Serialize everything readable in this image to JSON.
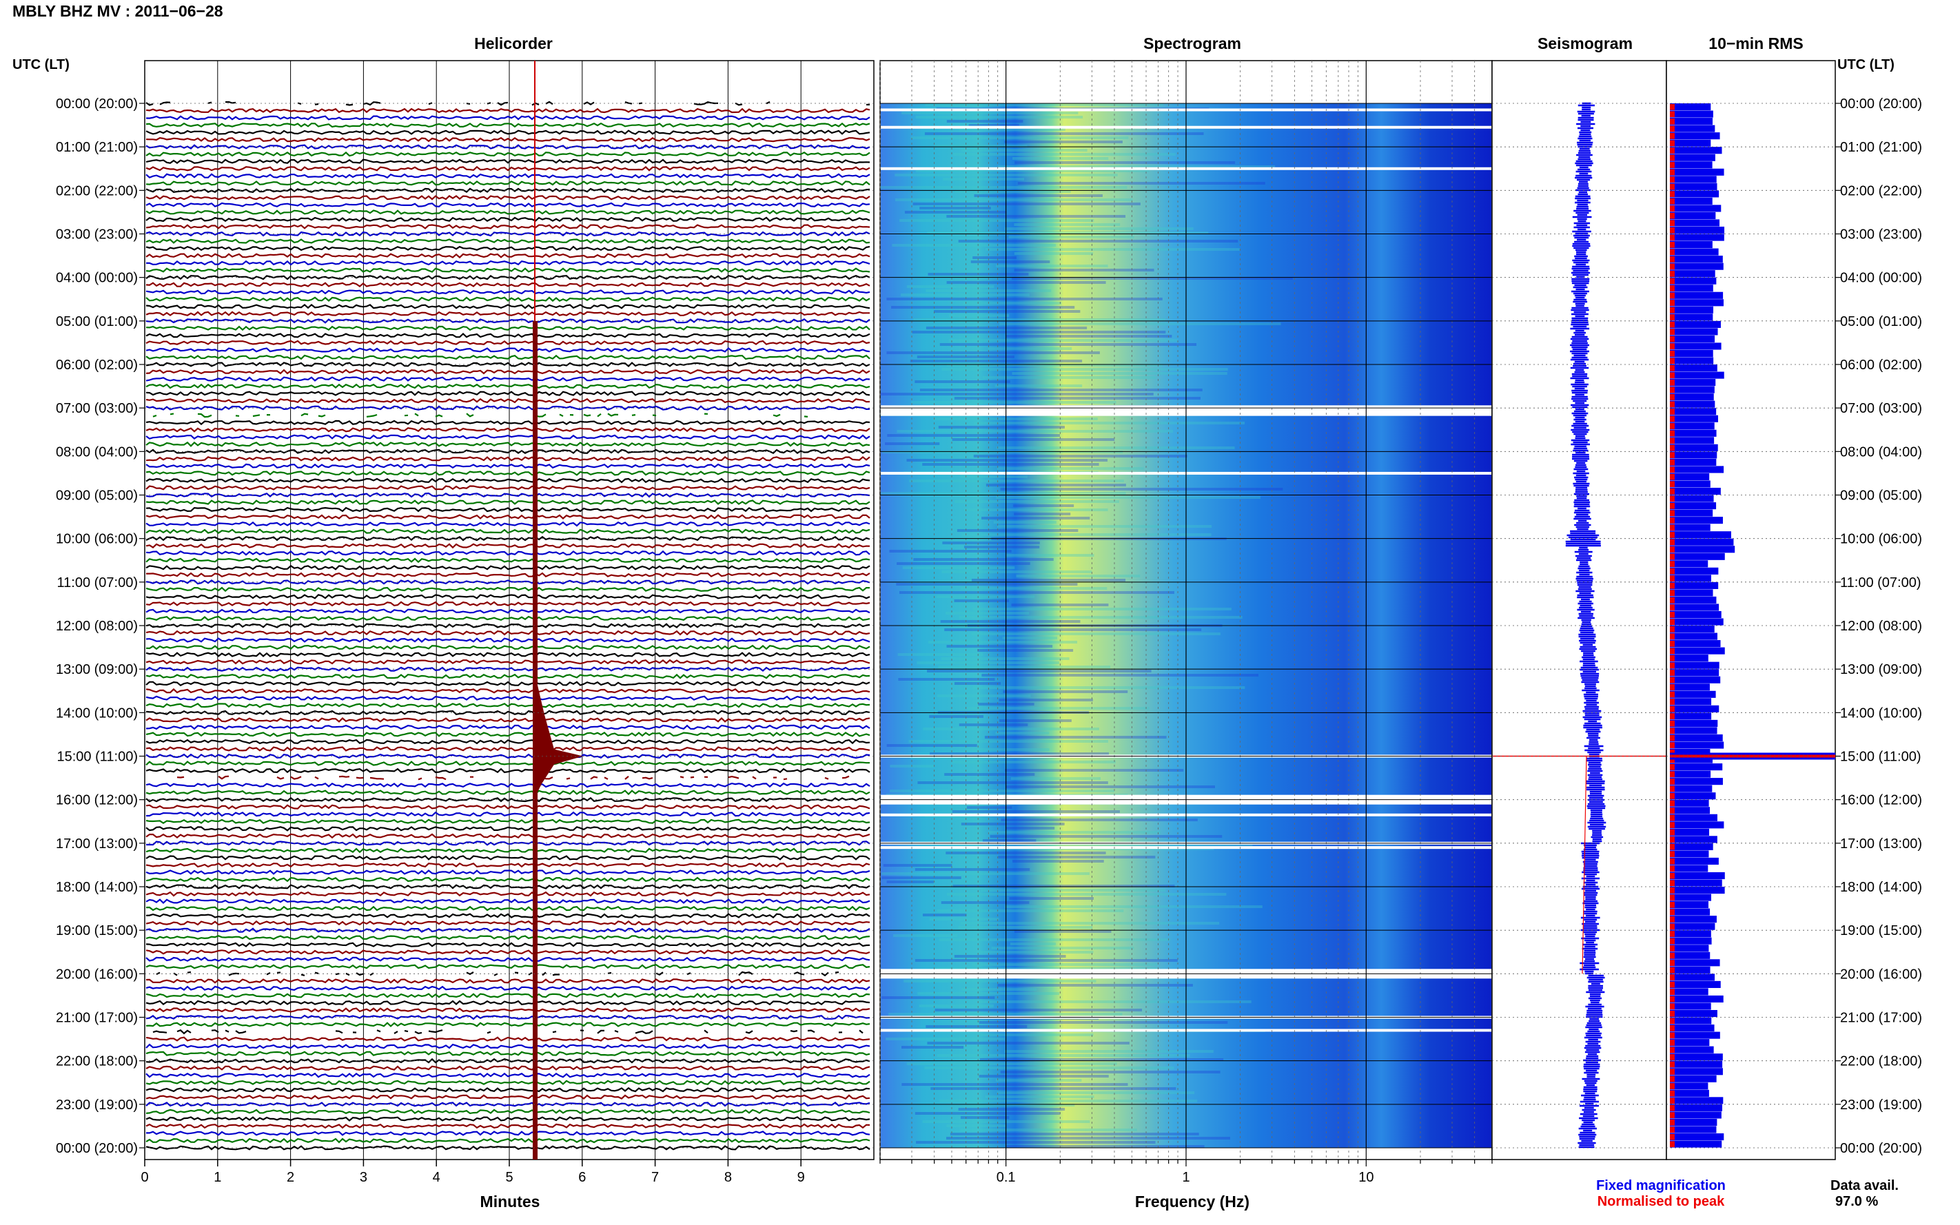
{
  "header": {
    "title": "MBLY BHZ MV : 2011−06−28",
    "time_label_left": "UTC (LT)",
    "time_label_right": "UTC (LT)"
  },
  "panels": {
    "helicorder": "Helicorder",
    "spectrogram": "Spectrogram",
    "seismogram": "Seismogram",
    "rms": "10−min RMS"
  },
  "time_ticks": [
    "00:00 (20:00)",
    "01:00 (21:00)",
    "02:00 (22:00)",
    "03:00 (23:00)",
    "04:00 (00:00)",
    "05:00 (01:00)",
    "06:00 (02:00)",
    "07:00 (03:00)",
    "08:00 (04:00)",
    "09:00 (05:00)",
    "10:00 (06:00)",
    "11:00 (07:00)",
    "12:00 (08:00)",
    "13:00 (09:00)",
    "14:00 (10:00)",
    "15:00 (11:00)",
    "16:00 (12:00)",
    "17:00 (13:00)",
    "18:00 (14:00)",
    "19:00 (15:00)",
    "20:00 (16:00)",
    "21:00 (17:00)",
    "22:00 (18:00)",
    "23:00 (19:00)",
    "00:00 (20:00)"
  ],
  "footer": {
    "fixed_magnification": "Fixed magnification",
    "normalised_to_peak": "Normalised to peak",
    "data_avail_label": "Data avail.",
    "data_avail_value": "97.0 %"
  },
  "colors": {
    "trace_cycle": [
      "#000000",
      "#8b0000",
      "#0000cc",
      "#007700"
    ],
    "rms_fixed": "#0000ee",
    "rms_peak": "#ee0000",
    "event_marker": "#cc0000",
    "spectrogram_low": "#0a1fd0",
    "spectrogram_high": "#e8f060"
  },
  "chart_data": {
    "type": "heatmap",
    "helicorder": {
      "xlabel": "Minutes",
      "x_ticks": [
        "0",
        "1",
        "2",
        "3",
        "4",
        "5",
        "6",
        "7",
        "8",
        "9"
      ],
      "xlim": [
        0,
        10
      ],
      "rows_per_hour": 6,
      "hours": 24,
      "event": {
        "utc": "15:00",
        "minute": 5.35
      },
      "gaps_utc_hours": [
        0.0,
        7.2,
        15.5,
        20.0,
        21.3
      ]
    },
    "spectrogram": {
      "xlabel": "Frequency (Hz)",
      "x_scale": "log",
      "x_ticks": [
        "0.1",
        "1",
        "10"
      ],
      "xlim": [
        0.02,
        50
      ],
      "gaps_utc_hours": [
        0.15,
        0.55,
        1.5,
        7.05,
        7.15,
        8.5,
        15.0,
        16.0,
        16.05,
        16.35,
        17.0,
        17.1,
        20.0,
        21.0,
        21.3
      ]
    },
    "seismogram": {
      "event_utc_hour": 15.0
    },
    "rms": {
      "event_utc_hour": 15.0,
      "legend": [
        "Fixed magnification",
        "Normalised to peak"
      ]
    },
    "data_availability_percent": 97.0
  }
}
